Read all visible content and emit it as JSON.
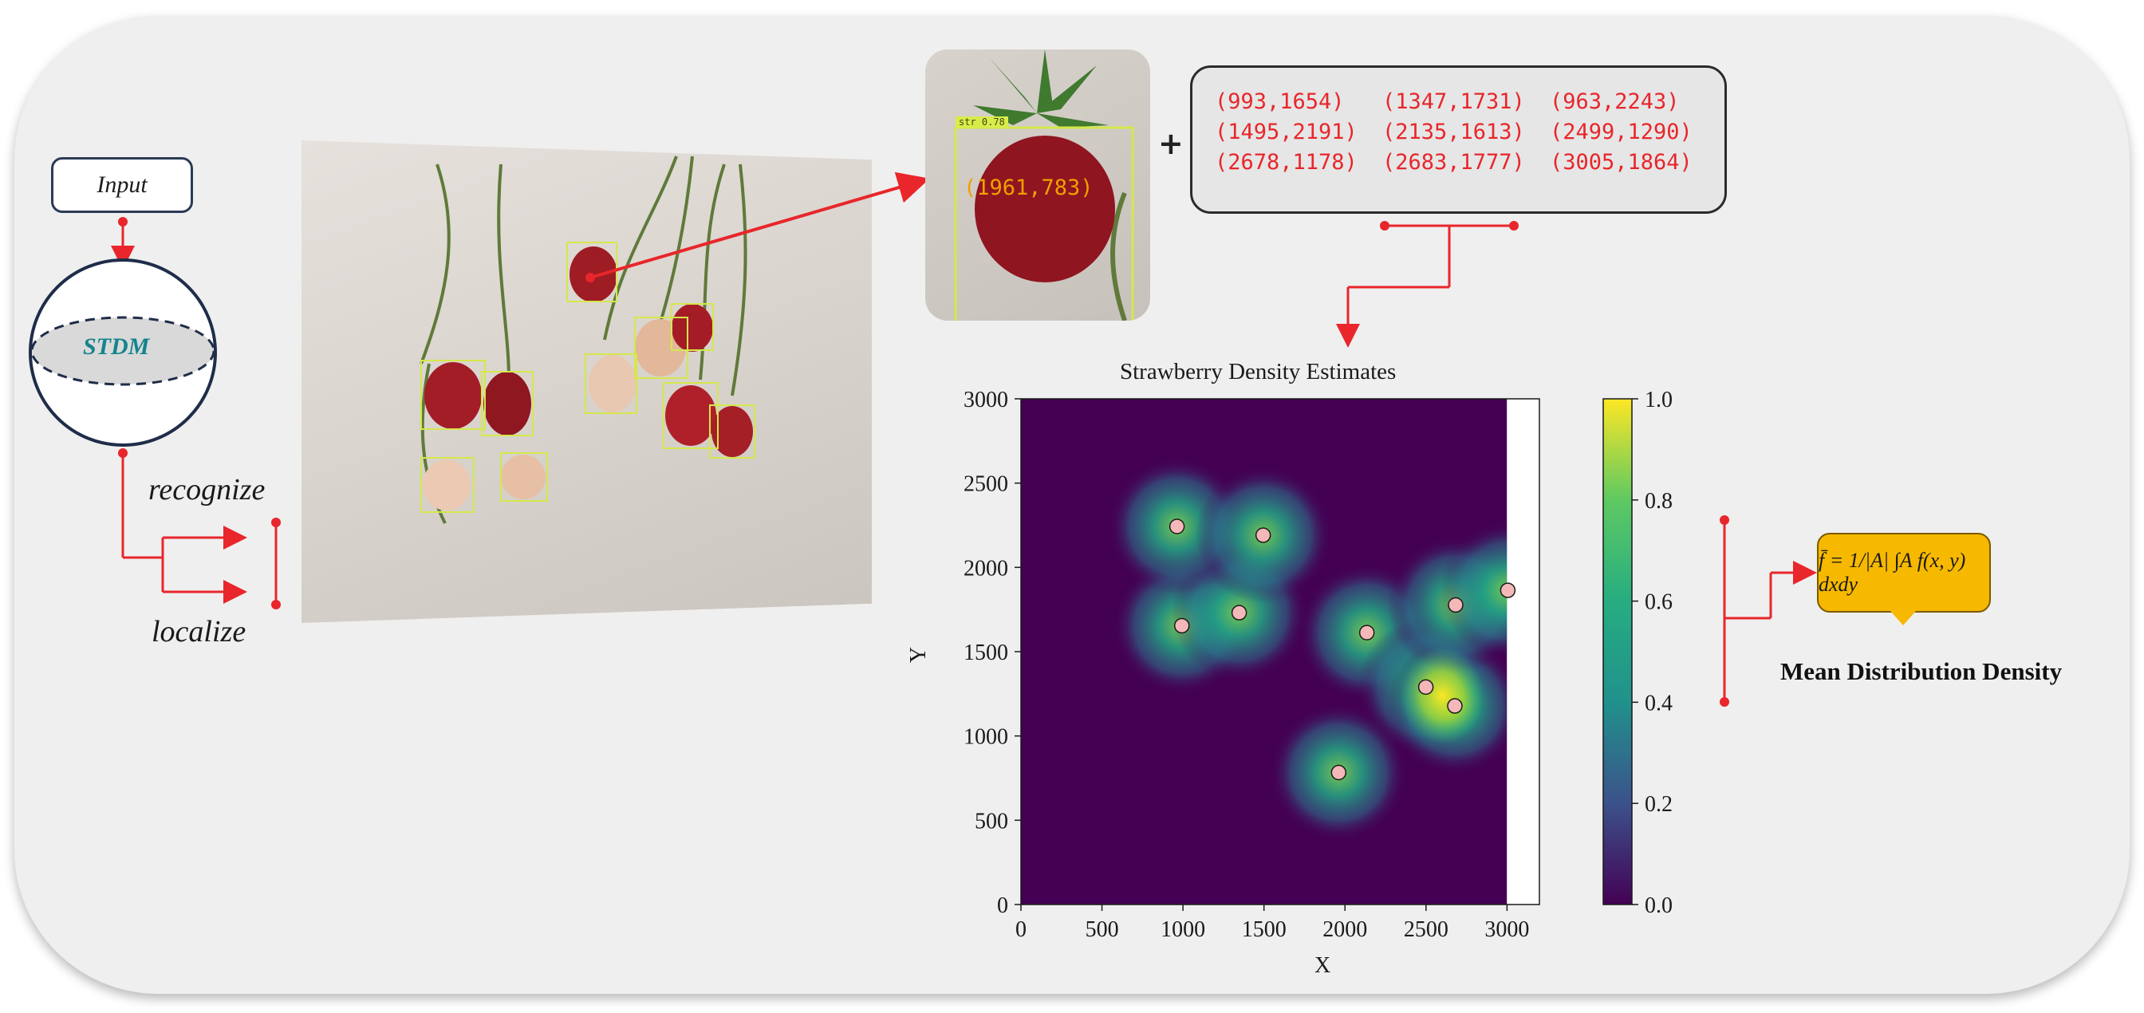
{
  "input_label": "Input",
  "model_label": "STDM",
  "recognize_label": "recognize",
  "localize_label": "localize",
  "zoom": {
    "coord_label": "(1961,783)",
    "detection_tag": "str 0.78"
  },
  "plus": "+",
  "coordinates": [
    [
      "(993,1654)",
      "(1347,1731)",
      "(963,2243)"
    ],
    [
      "(1495,2191)",
      "(2135,1613)",
      "(2499,1290)"
    ],
    [
      "(2678,1178)",
      "(2683,1777)",
      "(3005,1864)"
    ]
  ],
  "formula": "f̄ = 1/|A| ∫A f(x, y) dxdy",
  "mean_density_label": "Mean Distribution Density",
  "colors": {
    "arrow": "#e8262b",
    "viridis_dark": "#440154",
    "point_fill": "#f4b8b8"
  },
  "chart_data": {
    "type": "heatmap",
    "title": "Strawberry Density Estimates",
    "xlabel": "X",
    "ylabel": "Y",
    "xlim": [
      0,
      3200
    ],
    "ylim": [
      0,
      3000
    ],
    "x_ticks": [
      0,
      500,
      1000,
      1500,
      2000,
      2500,
      3000
    ],
    "y_ticks": [
      0,
      500,
      1000,
      1500,
      2000,
      2500,
      3000
    ],
    "colorbar_ticks": [
      "0.0",
      "0.2",
      "0.4",
      "0.6",
      "0.8",
      "1.0"
    ],
    "colorbar_range": [
      0,
      1
    ],
    "colormap": "viridis",
    "points": [
      {
        "x": 993,
        "y": 1654
      },
      {
        "x": 1347,
        "y": 1731
      },
      {
        "x": 963,
        "y": 2243
      },
      {
        "x": 1495,
        "y": 2191
      },
      {
        "x": 2135,
        "y": 1613
      },
      {
        "x": 2499,
        "y": 1290
      },
      {
        "x": 2678,
        "y": 1178
      },
      {
        "x": 2683,
        "y": 1777
      },
      {
        "x": 3005,
        "y": 1864
      },
      {
        "x": 1961,
        "y": 783
      }
    ]
  }
}
